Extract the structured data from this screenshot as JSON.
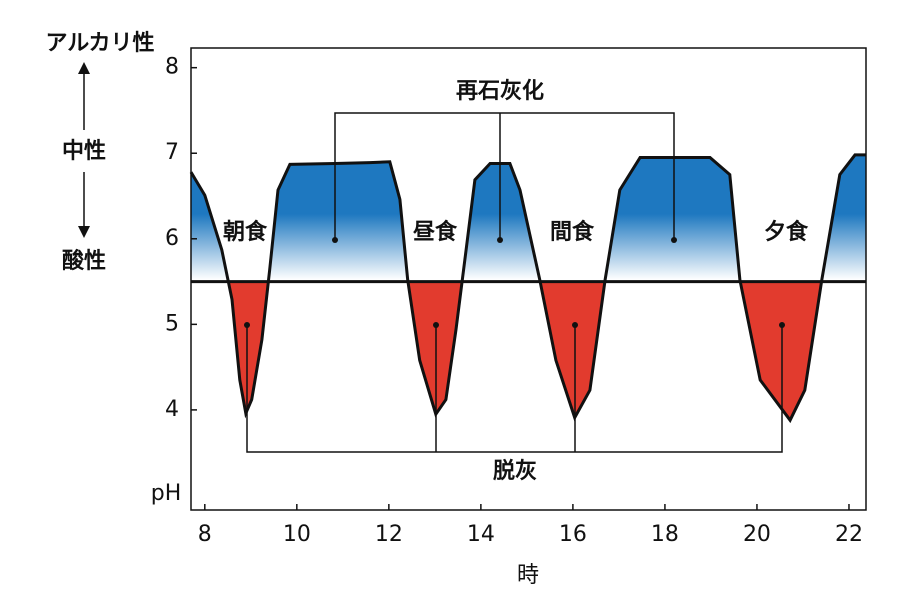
{
  "chart_data": {
    "type": "line",
    "x": [
      7.7,
      8.0,
      8.37,
      8.59,
      8.76,
      8.89,
      9.02,
      9.24,
      9.41,
      9.59,
      9.85,
      10.83,
      11.59,
      12.02,
      12.24,
      12.41,
      12.67,
      13.02,
      13.24,
      13.46,
      13.65,
      13.87,
      14.2,
      14.63,
      14.85,
      15.28,
      15.63,
      16.04,
      16.37,
      16.7,
      17.02,
      17.46,
      18.98,
      19.41,
      19.63,
      20.07,
      20.72,
      21.04,
      21.41,
      21.8,
      22.13,
      22.37
    ],
    "series": [
      {
        "color": "#111111",
        "values": [
          6.78,
          6.51,
          5.87,
          5.29,
          4.35,
          3.96,
          4.12,
          4.82,
          5.64,
          6.57,
          6.87,
          6.88,
          6.89,
          6.9,
          6.46,
          5.52,
          4.58,
          3.95,
          4.12,
          4.94,
          5.75,
          6.69,
          6.88,
          6.88,
          6.57,
          5.52,
          4.58,
          3.91,
          4.23,
          5.52,
          6.57,
          6.95,
          6.95,
          6.75,
          5.52,
          4.35,
          3.88,
          4.23,
          5.52,
          6.75,
          6.98,
          6.98
        ]
      }
    ],
    "critical_ph": 5.5,
    "above_color": "#1e78c0",
    "below_color": "#e23b2e",
    "xlim": [
      7.7,
      22.37
    ],
    "ylim": [
      2.83,
      8.23
    ],
    "xticks": [
      8,
      10,
      12,
      14,
      16,
      18,
      20,
      22
    ],
    "yticks": [
      4,
      5,
      6,
      7,
      8
    ],
    "x_label": "時",
    "y_label": "pH",
    "side_labels": [
      "アルカリ性",
      "中性",
      "酸性"
    ],
    "meals": [
      "朝食",
      "昼食",
      "間食",
      "夕食"
    ],
    "remineralization": "再石灰化",
    "demineralization": "脱灰"
  }
}
